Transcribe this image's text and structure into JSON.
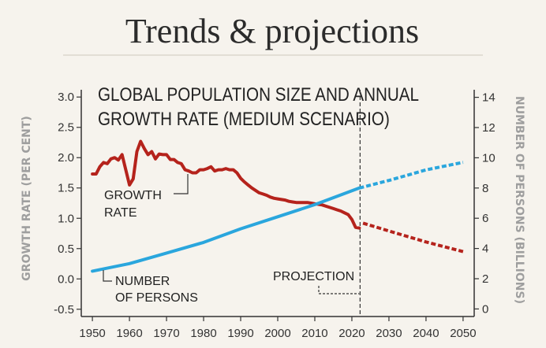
{
  "header": {
    "title": "Trends & projections"
  },
  "chart_data": {
    "type": "line",
    "title": "GLOBAL POPULATION SIZE AND ANNUAL GROWTH RATE (MEDIUM SCENARIO)",
    "title_lines": [
      "GLOBAL POPULATION SIZE AND ANNUAL",
      "GROWTH RATE (MEDIUM SCENARIO)"
    ],
    "xlabel": "",
    "ylabel_left": "GROWTH RATE (PER CENT)",
    "ylabel_right": "NUMBER OF PERSONS (BILLIONS)",
    "xlim": [
      1947,
      2053
    ],
    "ylim_left": [
      -0.62,
      3.12
    ],
    "ylim_right": [
      -0.5,
      14.5
    ],
    "x_ticks": [
      1950,
      1960,
      1970,
      1980,
      1990,
      2000,
      2010,
      2020,
      2030,
      2040,
      2050
    ],
    "y_ticks_left": [
      "-0.5",
      "0.0",
      "0.5",
      "1.0",
      "1.5",
      "2.0",
      "2.5",
      "3.0"
    ],
    "y_ticks_right": [
      "0",
      "2",
      "4",
      "6",
      "8",
      "10",
      "12",
      "14"
    ],
    "projection_year": 2022,
    "annotations": {
      "growth_rate": [
        "GROWTH",
        "RATE"
      ],
      "number_of_persons": [
        "NUMBER",
        "OF PERSONS"
      ],
      "projection": "PROJECTION"
    },
    "colors": {
      "growth": "#b5231c",
      "population": "#2aa6dd",
      "axis": "#333333",
      "muted": "#9e9e9e"
    },
    "series": [
      {
        "name": "GROWTH RATE",
        "axis": "left",
        "x": [
          1950,
          1951,
          1952,
          1953,
          1954,
          1955,
          1956,
          1957,
          1958,
          1959,
          1960,
          1961,
          1962,
          1963,
          1964,
          1965,
          1966,
          1967,
          1968,
          1969,
          1970,
          1971,
          1972,
          1973,
          1974,
          1975,
          1976,
          1977,
          1978,
          1979,
          1980,
          1981,
          1982,
          1983,
          1984,
          1985,
          1986,
          1987,
          1988,
          1989,
          1990,
          1991,
          1992,
          1993,
          1994,
          1995,
          1996,
          1997,
          1998,
          1999,
          2000,
          2001,
          2002,
          2003,
          2004,
          2005,
          2006,
          2007,
          2008,
          2009,
          2010,
          2011,
          2012,
          2013,
          2014,
          2015,
          2016,
          2017,
          2018,
          2019,
          2020,
          2021,
          2022
        ],
        "y": [
          1.73,
          1.73,
          1.85,
          1.92,
          1.9,
          1.98,
          2.0,
          1.96,
          2.05,
          1.8,
          1.55,
          1.65,
          2.1,
          2.27,
          2.15,
          2.05,
          2.1,
          1.98,
          2.06,
          2.05,
          2.05,
          1.97,
          1.97,
          1.92,
          1.9,
          1.8,
          1.78,
          1.75,
          1.75,
          1.8,
          1.8,
          1.82,
          1.85,
          1.78,
          1.8,
          1.8,
          1.82,
          1.8,
          1.8,
          1.75,
          1.66,
          1.6,
          1.55,
          1.5,
          1.46,
          1.42,
          1.4,
          1.38,
          1.35,
          1.33,
          1.32,
          1.31,
          1.3,
          1.28,
          1.27,
          1.26,
          1.26,
          1.26,
          1.26,
          1.25,
          1.24,
          1.23,
          1.22,
          1.2,
          1.18,
          1.16,
          1.14,
          1.12,
          1.09,
          1.06,
          0.98,
          0.85,
          0.84
        ]
      },
      {
        "name": "GROWTH RATE (projection)",
        "axis": "left",
        "dashed": true,
        "x": [
          2023,
          2030,
          2040,
          2050
        ],
        "y": [
          0.92,
          0.79,
          0.61,
          0.45
        ]
      },
      {
        "name": "NUMBER OF PERSONS",
        "axis": "right",
        "x": [
          1950,
          1960,
          1970,
          1980,
          1990,
          2000,
          2010,
          2022
        ],
        "y": [
          2.5,
          3.0,
          3.7,
          4.4,
          5.3,
          6.1,
          6.9,
          8.0
        ]
      },
      {
        "name": "NUMBER OF PERSONS (projection)",
        "axis": "right",
        "dashed": true,
        "x": [
          2022,
          2030,
          2040,
          2050
        ],
        "y": [
          8.0,
          8.5,
          9.2,
          9.7
        ]
      }
    ]
  }
}
